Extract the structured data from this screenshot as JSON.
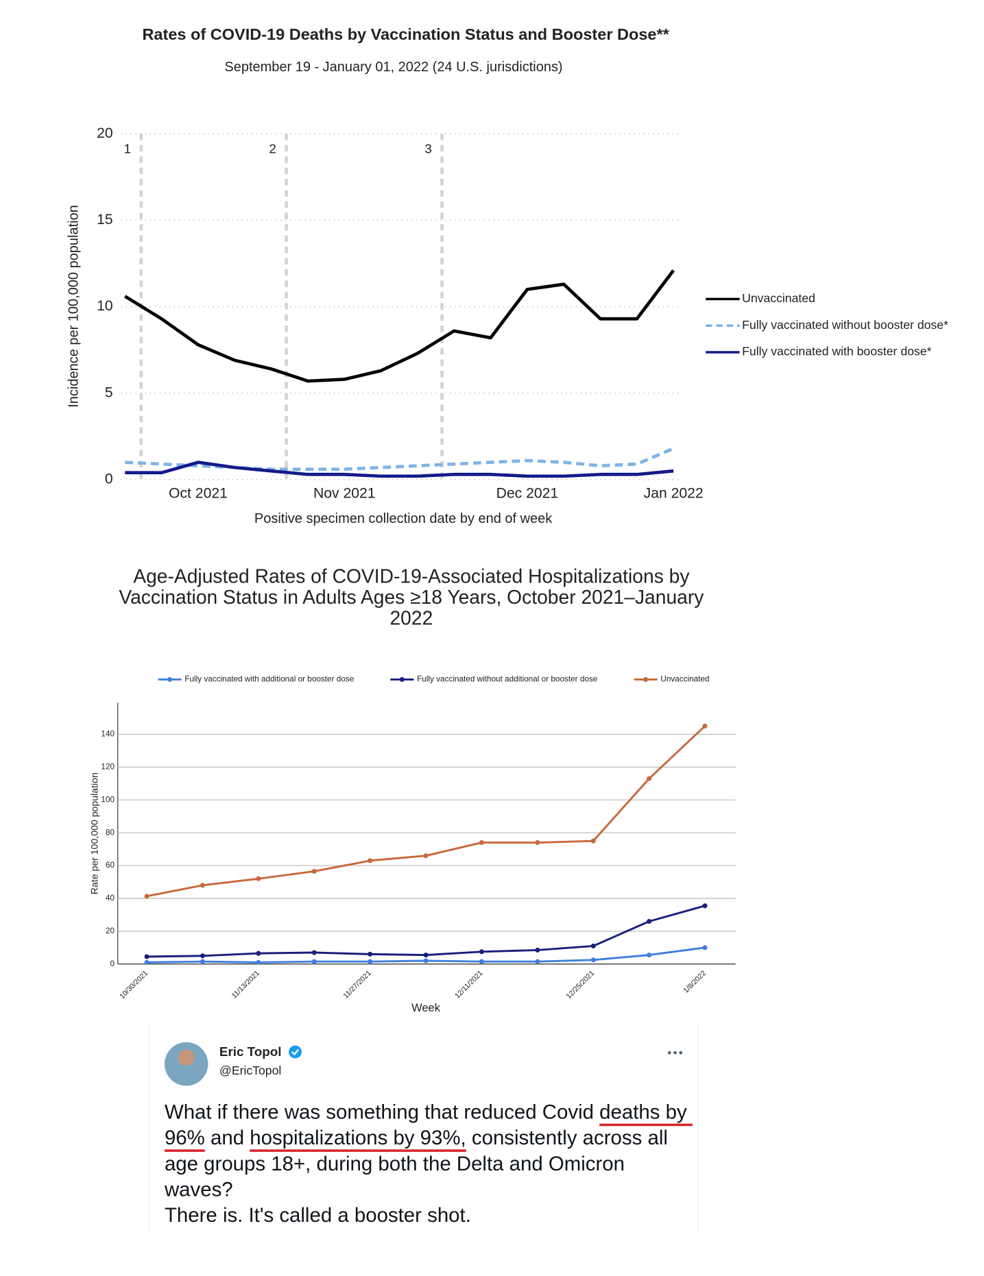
{
  "chart_data": [
    {
      "type": "line",
      "title": "Rates of COVID-19 Deaths by Vaccination Status and Booster Dose**",
      "subtitle": "September 19 - January 01, 2022 (24 U.S. jurisdictions)",
      "y_label": "Incidence per 100,000 population",
      "x_label": "Positive specimen collection date by end of week",
      "categories": [
        null,
        null,
        "Oct 2021",
        null,
        null,
        null,
        "Nov 2021",
        null,
        null,
        null,
        null,
        "Dec 2021",
        null,
        null,
        null,
        "Jan 2022"
      ],
      "ylim": [
        0,
        20
      ],
      "yticks": [
        0,
        5,
        10,
        15,
        20
      ],
      "grid": true,
      "legend": "right",
      "annotations": [
        "1",
        "2",
        "3"
      ],
      "series": [
        {
          "name": "Unvaccinated",
          "color": "#000000",
          "values": [
            10.6,
            9.3,
            7.8,
            6.9,
            6.4,
            5.7,
            5.8,
            6.3,
            7.3,
            8.6,
            8.2,
            11.0,
            11.3,
            9.3,
            9.3,
            12.1
          ]
        },
        {
          "name": "Fully vaccinated without booster dose*",
          "color": "#7fb3e8",
          "dashed": true,
          "values": [
            1.0,
            0.9,
            0.8,
            0.7,
            0.6,
            0.6,
            0.6,
            0.7,
            0.8,
            0.9,
            1.0,
            1.1,
            1.0,
            0.8,
            0.9,
            1.8
          ]
        },
        {
          "name": "Fully vaccinated with booster dose*",
          "color": "#141a8a",
          "values": [
            0.4,
            0.4,
            1.0,
            0.7,
            0.5,
            0.3,
            0.3,
            0.2,
            0.2,
            0.3,
            0.3,
            0.2,
            0.2,
            0.3,
            0.3,
            0.5
          ]
        }
      ]
    },
    {
      "type": "line",
      "title": "Age-Adjusted Rates of COVID-19-Associated Hospitalizations by Vaccination Status in Adults Ages ≥18 Years, October 2021–January 2022",
      "y_label": "Rate per 100,000 population",
      "x_label": "Week",
      "categories": [
        "10/30/2021",
        null,
        "11/13/2021",
        null,
        "11/27/2021",
        null,
        "12/11/2021",
        null,
        "12/25/2021",
        null,
        "1/8/2022"
      ],
      "ylim": [
        0,
        160
      ],
      "yticks": [
        0,
        20,
        40,
        60,
        80,
        100,
        120,
        140
      ],
      "grid": true,
      "legend": "top",
      "markers": true,
      "series": [
        {
          "name": "Fully vaccinated with additional or booster dose",
          "color": "#3f7fdc",
          "values": [
            1,
            1.5,
            1,
            1.5,
            1.5,
            2,
            1.5,
            1.5,
            2.5,
            5.5,
            10
          ]
        },
        {
          "name": "Fully vaccinated without additional or booster dose",
          "color": "#1a1f7a",
          "values": [
            4.5,
            5,
            6.5,
            7,
            6,
            5.5,
            7.5,
            8.5,
            11,
            26,
            35.5
          ]
        },
        {
          "name": "Unvaccinated",
          "color": "#c8693c",
          "values": [
            41.3,
            48,
            52,
            56.5,
            63,
            66,
            74,
            74,
            75,
            113,
            145
          ]
        }
      ]
    }
  ],
  "tweet": {
    "name": "Eric Topol",
    "handle": "@EricTopol",
    "paragraphs": [
      [
        {
          "text": "What if there was something that reduced Covid "
        },
        {
          "text": "deaths by 96%",
          "underline": true
        },
        {
          "text": " and "
        },
        {
          "text": "hospitalizations by 93%,",
          "underline": true
        },
        {
          "text": " consistently across all age groups 18+, during both the Delta and Omicron waves?"
        }
      ],
      [
        {
          "text": "There is. It's called a booster shot."
        }
      ]
    ]
  }
}
